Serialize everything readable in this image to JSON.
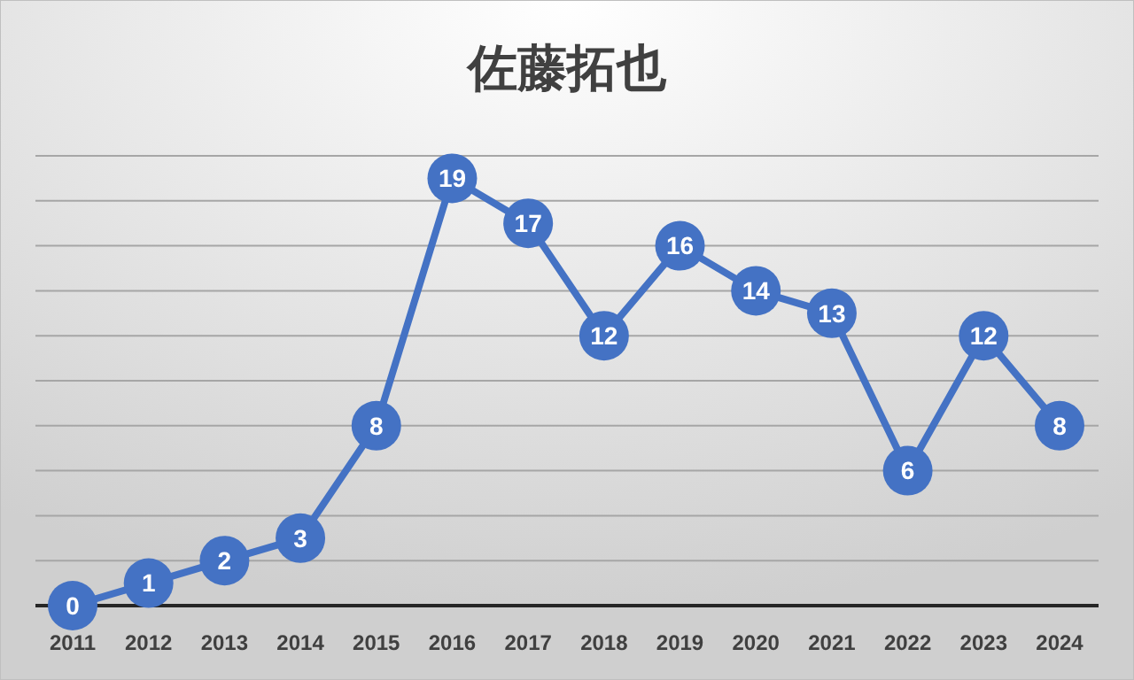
{
  "chart_data": {
    "type": "line",
    "title": "佐藤拓也",
    "categories": [
      "2011",
      "2012",
      "2013",
      "2014",
      "2015",
      "2016",
      "2017",
      "2018",
      "2019",
      "2020",
      "2021",
      "2022",
      "2023",
      "2024"
    ],
    "series": [
      {
        "color": "#4472c4",
        "values": [
          0,
          1,
          2,
          3,
          8,
          19,
          17,
          12,
          16,
          14,
          13,
          6,
          12,
          8
        ]
      }
    ],
    "ylim": [
      0,
      20
    ],
    "yticks": [
      {
        "value": 0,
        "label": null
      },
      {
        "value": 2,
        "label": null
      },
      {
        "value": 4,
        "label": null
      },
      {
        "value": 6,
        "label": null
      },
      {
        "value": 8,
        "label": null
      },
      {
        "value": 10,
        "label": null
      },
      {
        "value": 12,
        "label": null
      },
      {
        "value": 14,
        "label": null
      },
      {
        "value": 16,
        "label": null
      },
      {
        "value": 18,
        "label": null
      },
      {
        "value": 20,
        "label": null
      }
    ],
    "grid": "y",
    "tick_labels": "x",
    "marker": "circle",
    "line_style": "solid",
    "data_labels": true
  }
}
